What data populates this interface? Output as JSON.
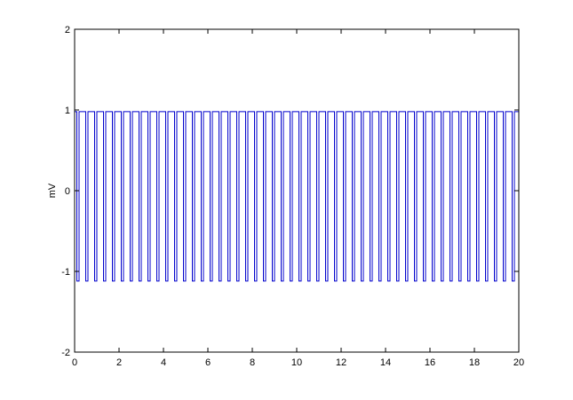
{
  "chart_data": {
    "type": "line",
    "title": "",
    "xlabel": "",
    "ylabel": "mV",
    "xlim": [
      0,
      20
    ],
    "ylim": [
      -2,
      2
    ],
    "x_ticks": [
      "0",
      "2",
      "4",
      "6",
      "8",
      "10",
      "12",
      "14",
      "16",
      "18",
      "20"
    ],
    "y_ticks": [
      "-2",
      "-1",
      "0",
      "1",
      "2"
    ],
    "grid": false,
    "legend": "none",
    "series": [
      {
        "color": "#0000cc",
        "signal": "square wave",
        "high": 0.98,
        "low": -1.12,
        "period": 0.4,
        "duty_cycle": 0.75,
        "phase": 0.1
      }
    ]
  }
}
